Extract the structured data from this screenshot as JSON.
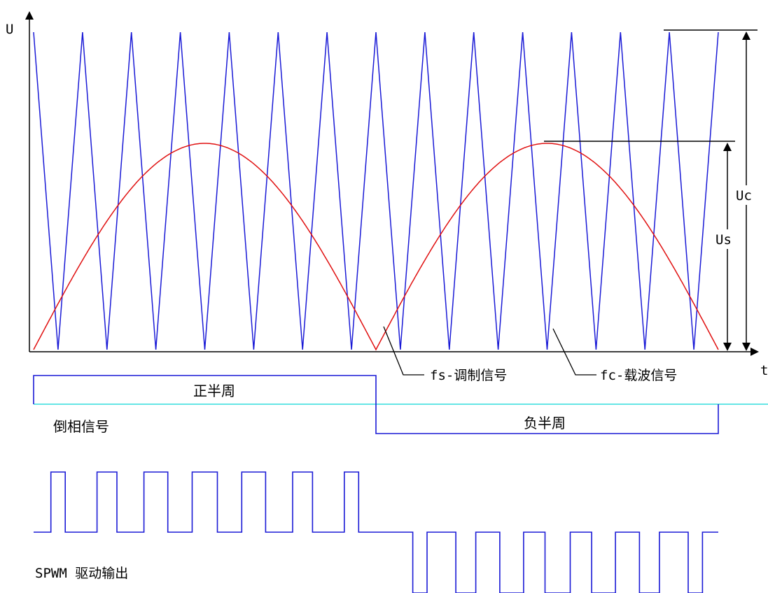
{
  "axes": {
    "y_label": "U",
    "x_label": "t"
  },
  "dimensions": {
    "carrier_amplitude_label": "Uc",
    "signal_amplitude_label": "Us"
  },
  "legend": {
    "modulation_label": "fs-调制信号",
    "carrier_label": "fc-载波信号"
  },
  "polarity": {
    "positive_half_label": "正半周",
    "negative_half_label": "负半周",
    "caption": "倒相信号"
  },
  "spwm": {
    "caption": "SPWM 驱动输出",
    "positive_pulse_count": 7,
    "negative_pulse_count": 7
  },
  "colors": {
    "carrier": "#1a1ad6",
    "modulation": "#e01010",
    "axis": "#000000",
    "polarity": "#1a1ad6",
    "reference_line": "#33dddd",
    "spwm": "#1a1ad6"
  },
  "waveforms": {
    "carrier_shape": "triangle",
    "carrier_peaks": 14,
    "modulation_shape": "rectified-sine",
    "modulation_half_cycles": 2
  }
}
